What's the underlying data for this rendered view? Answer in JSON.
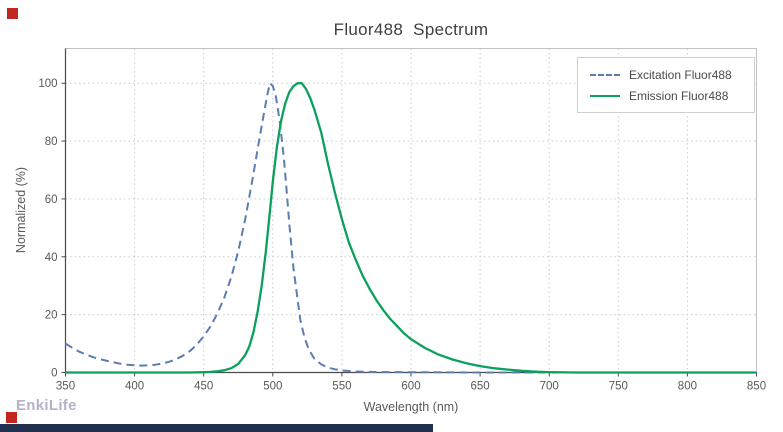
{
  "chart": {
    "title": "Fluor488  Spectrum",
    "xlabel": "Wavelength (nm)",
    "ylabel": "Normalized (%)",
    "watermark": "EnkiLife"
  },
  "style_colors": {
    "grid": "#cbcbcb",
    "box": "#c2c2c2",
    "axis": "#4a4a4a",
    "tick_text": "#595959",
    "title_text": "#3f3f3f",
    "watermark": "#b6b0c8",
    "bottom_bar": "#22304f",
    "corner_marker": "#c1261f"
  },
  "chart_data": {
    "type": "line",
    "title": "Fluor488  Spectrum",
    "xlabel": "Wavelength (nm)",
    "ylabel": "Normalized (%)",
    "xlim": [
      350,
      850
    ],
    "ylim": [
      0,
      112
    ],
    "xticks": [
      350,
      400,
      450,
      500,
      550,
      600,
      650,
      700,
      750,
      800,
      850
    ],
    "yticks": [
      0,
      20,
      40,
      60,
      80,
      100
    ],
    "grid": true,
    "grid_style": "dotted",
    "legend_position": "top-right",
    "series": [
      {
        "name": "Excitation Fluor488",
        "color": "#5b7db1",
        "dash": "dashed",
        "x": [
          350,
          355,
          360,
          365,
          370,
          375,
          380,
          385,
          390,
          395,
          400,
          405,
          410,
          415,
          420,
          425,
          430,
          435,
          440,
          445,
          450,
          455,
          460,
          465,
          470,
          475,
          480,
          485,
          490,
          493,
          496,
          498,
          500,
          502,
          505,
          508,
          510,
          512,
          515,
          518,
          520,
          523,
          526,
          530,
          535,
          540,
          545,
          550,
          560,
          570,
          580,
          600,
          650,
          700,
          750,
          800,
          850
        ],
        "y": [
          10,
          8.5,
          7.2,
          6.2,
          5.3,
          4.6,
          4,
          3.5,
          3,
          2.7,
          2.5,
          2.4,
          2.5,
          2.7,
          3.1,
          3.7,
          4.6,
          5.8,
          7.4,
          9.6,
          12.5,
          16,
          20.5,
          26,
          33,
          42,
          53,
          66,
          80,
          88,
          96,
          100,
          99,
          96,
          87,
          74,
          63,
          51,
          36,
          25,
          18,
          12,
          8,
          4.8,
          2.8,
          1.7,
          1.1,
          0.7,
          0.35,
          0.2,
          0.15,
          0.1,
          0,
          0,
          0,
          0,
          0
        ]
      },
      {
        "name": "Emission Fluor488",
        "color": "#0ba05c",
        "dash": "solid",
        "x": [
          350,
          400,
          440,
          450,
          455,
          460,
          465,
          470,
          475,
          480,
          483,
          486,
          489,
          492,
          495,
          498,
          500,
          503,
          506,
          509,
          512,
          515,
          518,
          521,
          524,
          527,
          530,
          535,
          540,
          545,
          550,
          555,
          560,
          565,
          570,
          575,
          580,
          585,
          590,
          595,
          600,
          610,
          620,
          630,
          640,
          650,
          660,
          670,
          680,
          690,
          700,
          720,
          750,
          800,
          850
        ],
        "y": [
          0,
          0,
          0,
          0.1,
          0.2,
          0.4,
          0.8,
          1.5,
          3,
          6,
          9,
          14,
          21,
          30,
          42,
          56,
          66,
          78,
          87,
          93,
          97,
          99,
          100,
          100,
          98,
          95,
          91,
          83,
          72,
          62,
          53,
          45,
          39,
          33.5,
          29,
          25,
          21.5,
          18.5,
          16,
          13.5,
          11.5,
          8.5,
          6.2,
          4.5,
          3.2,
          2.2,
          1.5,
          1,
          0.6,
          0.3,
          0.15,
          0,
          0,
          0,
          0
        ]
      }
    ]
  }
}
